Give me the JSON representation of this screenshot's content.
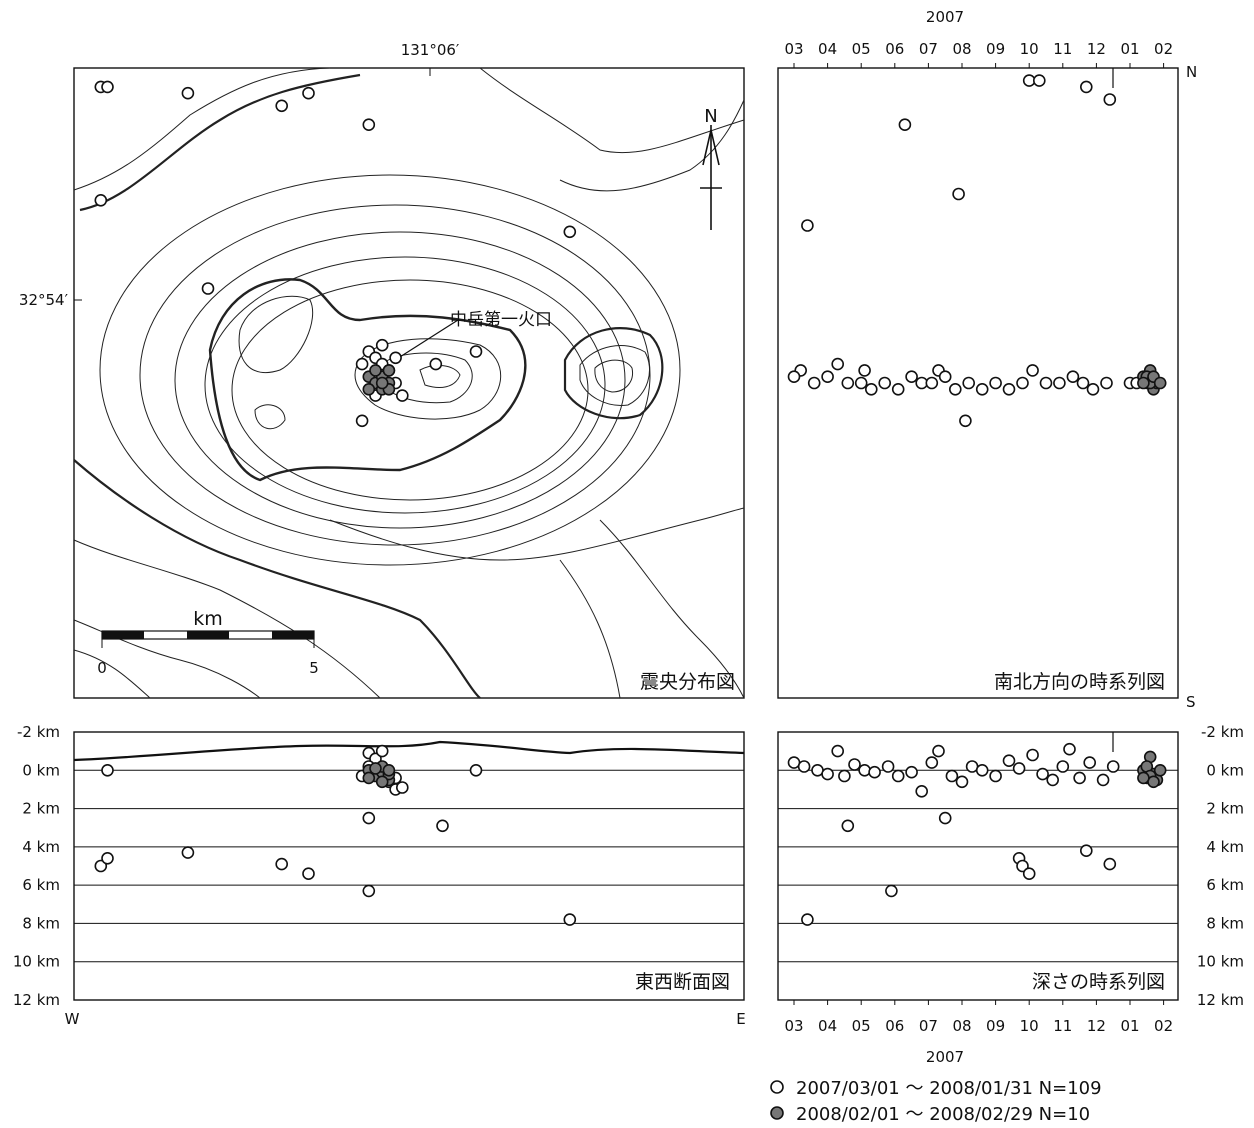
{
  "top_year": "2007",
  "bottom_year": "2007",
  "map_lon_label": "131°06′",
  "map_lat_label": "32°54′",
  "crater_label": "中岳第一火口",
  "north_label": "N",
  "scale_unit": "km",
  "scale_ticks": [
    "0",
    "5"
  ],
  "ew_west": "W",
  "ew_east": "E",
  "ns_north": "N",
  "ns_south": "S",
  "legend": [
    {
      "text": "2007/03/01 ～ 2008/01/31  N=109",
      "fill": "#ffffff"
    },
    {
      "text": "2008/02/01 ～ 2008/02/29  N=10",
      "fill": "#777777"
    }
  ],
  "colors": {
    "open_marker": "#ffffff",
    "filled_marker": "#777777",
    "line": "#111111"
  },
  "chart_data": [
    {
      "type": "scatter",
      "title": "震央分布図",
      "scale_bar_km": [
        0,
        5
      ],
      "map_features": [
        "contours",
        "crater",
        "north-arrow",
        "scale-bar"
      ],
      "series": [
        {
          "marker": "open",
          "points": [
            [
              0.04,
              0.03
            ],
            [
              0.05,
              0.03
            ],
            [
              0.17,
              0.04
            ],
            [
              0.31,
              0.06
            ],
            [
              0.35,
              0.04
            ],
            [
              0.44,
              0.09
            ],
            [
              0.04,
              0.21
            ],
            [
              0.74,
              0.26
            ],
            [
              0.2,
              0.35
            ],
            [
              0.44,
              0.45
            ],
            [
              0.45,
              0.46
            ],
            [
              0.46,
              0.47
            ],
            [
              0.47,
              0.48
            ],
            [
              0.43,
              0.47
            ],
            [
              0.46,
              0.44
            ],
            [
              0.48,
              0.46
            ],
            [
              0.48,
              0.5
            ],
            [
              0.49,
              0.52
            ],
            [
              0.45,
              0.52
            ],
            [
              0.43,
              0.56
            ],
            [
              0.54,
              0.47
            ],
            [
              0.6,
              0.45
            ]
          ]
        },
        {
          "marker": "filled",
          "points": [
            [
              0.44,
              0.49
            ],
            [
              0.45,
              0.5
            ],
            [
              0.46,
              0.49
            ],
            [
              0.47,
              0.5
            ],
            [
              0.46,
              0.51
            ],
            [
              0.44,
              0.51
            ],
            [
              0.47,
              0.48
            ],
            [
              0.45,
              0.48
            ],
            [
              0.47,
              0.51
            ],
            [
              0.46,
              0.5
            ]
          ]
        }
      ]
    },
    {
      "type": "scatter",
      "title": "東西断面図",
      "yticks": [
        "-2 km",
        "0 km",
        "2 km",
        "4 km",
        "6 km",
        "8 km",
        "10 km",
        "12 km"
      ],
      "ylim": [
        -2,
        12
      ],
      "x_direction": [
        "W",
        "E"
      ],
      "series": [
        {
          "marker": "open",
          "points": [
            [
              0.04,
              5.0
            ],
            [
              0.05,
              4.6
            ],
            [
              0.05,
              0.0
            ],
            [
              0.17,
              4.3
            ],
            [
              0.31,
              4.9
            ],
            [
              0.35,
              5.4
            ],
            [
              0.44,
              6.3
            ],
            [
              0.44,
              2.5
            ],
            [
              0.55,
              2.9
            ],
            [
              0.6,
              0.0
            ],
            [
              0.74,
              7.8
            ],
            [
              0.44,
              -0.9
            ],
            [
              0.45,
              -0.6
            ],
            [
              0.46,
              0.2
            ],
            [
              0.47,
              0.6
            ],
            [
              0.48,
              1.0
            ],
            [
              0.49,
              0.9
            ],
            [
              0.44,
              -0.2
            ],
            [
              0.43,
              0.3
            ],
            [
              0.46,
              -1.0
            ],
            [
              0.48,
              0.4
            ]
          ]
        },
        {
          "marker": "filled",
          "points": [
            [
              0.44,
              0.0
            ],
            [
              0.45,
              0.3
            ],
            [
              0.46,
              0.1
            ],
            [
              0.47,
              0.5
            ],
            [
              0.46,
              -0.2
            ],
            [
              0.44,
              0.4
            ],
            [
              0.47,
              0.2
            ],
            [
              0.45,
              -0.1
            ],
            [
              0.46,
              0.6
            ],
            [
              0.47,
              0.0
            ]
          ]
        }
      ]
    },
    {
      "type": "scatter",
      "title": "南北方向の時系列図",
      "xticks": [
        "03",
        "04",
        "05",
        "06",
        "07",
        "08",
        "09",
        "10",
        "11",
        "12",
        "01",
        "02"
      ],
      "y_direction": [
        "S",
        "N"
      ],
      "series": [
        {
          "marker": "open",
          "points": [
            [
              3.4,
              0.75
            ],
            [
              6.3,
              0.91
            ],
            [
              7.9,
              0.8
            ],
            [
              10.0,
              0.98
            ],
            [
              10.3,
              0.98
            ],
            [
              11.7,
              0.97
            ],
            [
              12.4,
              0.95
            ],
            [
              3.2,
              0.52
            ],
            [
              4.3,
              0.53
            ],
            [
              5.1,
              0.52
            ],
            [
              7.3,
              0.52
            ],
            [
              8.1,
              0.44
            ],
            [
              3.0,
              0.51
            ],
            [
              3.6,
              0.5
            ],
            [
              4.0,
              0.51
            ],
            [
              4.6,
              0.5
            ],
            [
              5.0,
              0.5
            ],
            [
              5.3,
              0.49
            ],
            [
              5.7,
              0.5
            ],
            [
              6.1,
              0.49
            ],
            [
              6.5,
              0.51
            ],
            [
              6.8,
              0.5
            ],
            [
              7.1,
              0.5
            ],
            [
              7.5,
              0.51
            ],
            [
              7.8,
              0.49
            ],
            [
              8.2,
              0.5
            ],
            [
              8.6,
              0.49
            ],
            [
              9.0,
              0.5
            ],
            [
              9.4,
              0.49
            ],
            [
              9.8,
              0.5
            ],
            [
              10.1,
              0.52
            ],
            [
              10.5,
              0.5
            ],
            [
              10.9,
              0.5
            ],
            [
              11.3,
              0.51
            ],
            [
              11.6,
              0.5
            ],
            [
              11.9,
              0.49
            ],
            [
              12.3,
              0.5
            ],
            [
              13.0,
              0.5
            ],
            [
              13.2,
              0.5
            ]
          ]
        },
        {
          "marker": "filled",
          "points": [
            [
              13.4,
              0.51
            ],
            [
              13.5,
              0.5
            ],
            [
              13.6,
              0.52
            ],
            [
              13.7,
              0.49
            ],
            [
              13.8,
              0.5
            ],
            [
              13.5,
              0.51
            ],
            [
              13.6,
              0.5
            ],
            [
              13.7,
              0.51
            ],
            [
              13.9,
              0.5
            ],
            [
              13.4,
              0.5
            ]
          ]
        }
      ]
    },
    {
      "type": "scatter",
      "title": "深さの時系列図",
      "xticks": [
        "03",
        "04",
        "05",
        "06",
        "07",
        "08",
        "09",
        "10",
        "11",
        "12",
        "01",
        "02"
      ],
      "yticks": [
        "-2 km",
        "0 km",
        "2 km",
        "4 km",
        "6 km",
        "8 km",
        "10 km",
        "12 km"
      ],
      "ylim": [
        -2,
        12
      ],
      "series": [
        {
          "marker": "open",
          "points": [
            [
              3.4,
              7.8
            ],
            [
              4.6,
              2.9
            ],
            [
              5.9,
              6.3
            ],
            [
              7.5,
              2.5
            ],
            [
              9.7,
              4.6
            ],
            [
              9.8,
              5.0
            ],
            [
              10.0,
              5.4
            ],
            [
              11.7,
              4.2
            ],
            [
              12.4,
              4.9
            ],
            [
              3.0,
              -0.4
            ],
            [
              3.3,
              -0.2
            ],
            [
              3.7,
              0.0
            ],
            [
              4.0,
              0.2
            ],
            [
              4.3,
              -1.0
            ],
            [
              4.5,
              0.3
            ],
            [
              4.8,
              -0.3
            ],
            [
              5.1,
              0.0
            ],
            [
              5.4,
              0.1
            ],
            [
              5.8,
              -0.2
            ],
            [
              6.1,
              0.3
            ],
            [
              6.5,
              0.1
            ],
            [
              6.8,
              1.1
            ],
            [
              7.1,
              -0.4
            ],
            [
              7.3,
              -1.0
            ],
            [
              7.7,
              0.3
            ],
            [
              8.0,
              0.6
            ],
            [
              8.3,
              -0.2
            ],
            [
              8.6,
              0.0
            ],
            [
              9.0,
              0.3
            ],
            [
              9.4,
              -0.5
            ],
            [
              9.7,
              -0.1
            ],
            [
              10.1,
              -0.8
            ],
            [
              10.4,
              0.2
            ],
            [
              10.7,
              0.5
            ],
            [
              11.0,
              -0.2
            ],
            [
              11.2,
              -1.1
            ],
            [
              11.5,
              0.4
            ],
            [
              11.8,
              -0.4
            ],
            [
              12.2,
              0.5
            ],
            [
              12.5,
              -0.2
            ]
          ]
        },
        {
          "marker": "filled",
          "points": [
            [
              13.4,
              0.0
            ],
            [
              13.5,
              0.4
            ],
            [
              13.6,
              -0.7
            ],
            [
              13.7,
              0.2
            ],
            [
              13.8,
              0.5
            ],
            [
              13.5,
              -0.2
            ],
            [
              13.6,
              0.3
            ],
            [
              13.7,
              0.6
            ],
            [
              13.9,
              0.0
            ],
            [
              13.4,
              0.4
            ]
          ]
        }
      ]
    }
  ]
}
